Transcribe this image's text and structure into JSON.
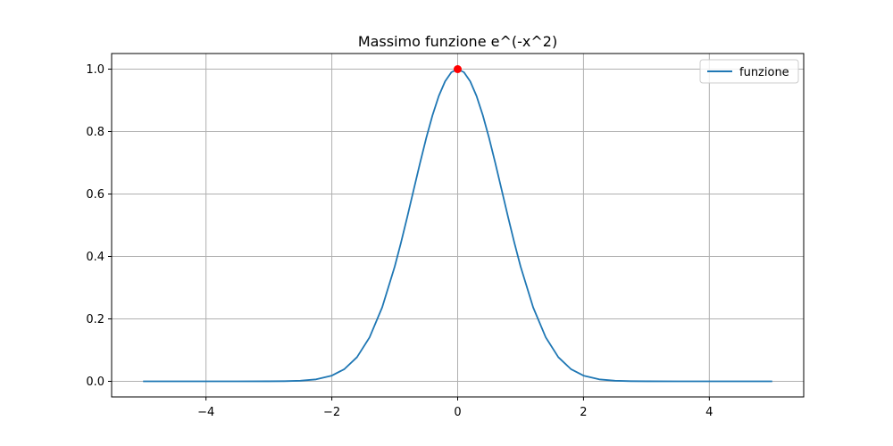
{
  "chart_data": {
    "type": "line",
    "title": "Massimo funzione e^(-x^2)",
    "xlabel": "",
    "ylabel": "",
    "xlim": [
      -5.5,
      5.5
    ],
    "ylim": [
      -0.05,
      1.05
    ],
    "grid": true,
    "legend_position": "top-right",
    "x_ticks": [
      {
        "value": -4,
        "label": "−4"
      },
      {
        "value": -2,
        "label": "−2"
      },
      {
        "value": 0,
        "label": "0"
      },
      {
        "value": 2,
        "label": "2"
      },
      {
        "value": 4,
        "label": "4"
      }
    ],
    "y_ticks": [
      {
        "value": 0.0,
        "label": "0.0"
      },
      {
        "value": 0.2,
        "label": "0.2"
      },
      {
        "value": 0.4,
        "label": "0.4"
      },
      {
        "value": 0.6,
        "label": "0.6"
      },
      {
        "value": 0.8,
        "label": "0.8"
      },
      {
        "value": 1.0,
        "label": "1.0"
      }
    ],
    "series": [
      {
        "name": "funzione",
        "color": "#1f77b4",
        "x": [
          -5.0,
          -4.5,
          -4.0,
          -3.5,
          -3.0,
          -2.75,
          -2.5,
          -2.25,
          -2.0,
          -1.8,
          -1.6,
          -1.4,
          -1.2,
          -1.0,
          -0.9,
          -0.8,
          -0.7,
          -0.6,
          -0.5,
          -0.4,
          -0.3,
          -0.2,
          -0.1,
          0.0,
          0.1,
          0.2,
          0.3,
          0.4,
          0.5,
          0.6,
          0.7,
          0.8,
          0.9,
          1.0,
          1.2,
          1.4,
          1.6,
          1.8,
          2.0,
          2.25,
          2.5,
          2.75,
          3.0,
          3.5,
          4.0,
          4.5,
          5.0
        ],
        "y": [
          0.0,
          0.0,
          0.0,
          0.0,
          0.0001,
          0.0005,
          0.0019,
          0.0063,
          0.0183,
          0.0392,
          0.0773,
          0.1409,
          0.2369,
          0.3679,
          0.4449,
          0.5273,
          0.6126,
          0.6977,
          0.7788,
          0.8521,
          0.9139,
          0.9608,
          0.99,
          1.0,
          0.99,
          0.9608,
          0.9139,
          0.8521,
          0.7788,
          0.6977,
          0.6126,
          0.5273,
          0.4449,
          0.3679,
          0.2369,
          0.1409,
          0.0773,
          0.0392,
          0.0183,
          0.0063,
          0.0019,
          0.0005,
          0.0001,
          0.0,
          0.0,
          0.0,
          0.0
        ]
      }
    ],
    "max_point": {
      "x": 0.0,
      "y": 1.0,
      "color": "#ff0000"
    }
  }
}
